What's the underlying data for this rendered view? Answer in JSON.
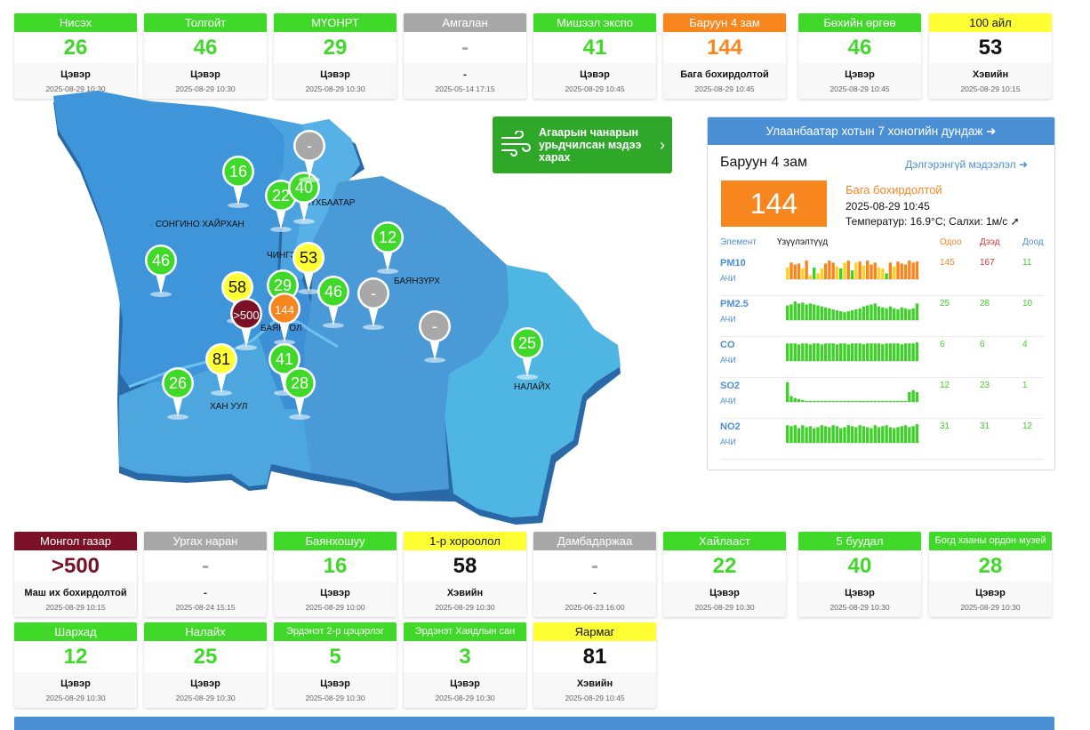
{
  "colors": {
    "green": "#40d92a",
    "orange": "#f7861e",
    "gray": "#a8a8a8",
    "yellow": "#ffff33",
    "maroon": "#7a1126",
    "blue": "#4a8fd4"
  },
  "top_cards": [
    {
      "name": "Нисэх",
      "value": "26",
      "status": "Цэвэр",
      "time": "2025-08-29 10:30",
      "level": "green"
    },
    {
      "name": "Толгойт",
      "value": "46",
      "status": "Цэвэр",
      "time": "2025-08-29 10:30",
      "level": "green"
    },
    {
      "name": "МҮОНРТ",
      "value": "29",
      "status": "Цэвэр",
      "time": "2025-08-29 10:30",
      "level": "green"
    },
    {
      "name": "Амгалан",
      "value": "-",
      "status": "-",
      "time": "2025-05-14 17:15",
      "level": "gray"
    },
    {
      "name": "Мишээл экспо",
      "value": "41",
      "status": "Цэвэр",
      "time": "2025-08-29 10:45",
      "level": "green"
    },
    {
      "name": "Баруун 4 зам",
      "value": "144",
      "status": "Бага бохирдолтой",
      "time": "2025-08-29 10:45",
      "level": "orange"
    },
    {
      "name": "Бөхийн өргөө",
      "value": "46",
      "status": "Цэвэр",
      "time": "2025-08-29 10:45",
      "level": "green"
    },
    {
      "name": "100 айл",
      "value": "53",
      "status": "Хэвийн",
      "time": "2025-08-29 10:15",
      "level": "yellow"
    }
  ],
  "bottom_cards_row1": [
    {
      "name": "Монгол газар",
      "value": ">500",
      "status": "Маш их бохирдолтой",
      "time": "2025-08-29 10:15",
      "level": "maroon"
    },
    {
      "name": "Ургах наран",
      "value": "-",
      "status": "-",
      "time": "2025-08-24 15:15",
      "level": "gray"
    },
    {
      "name": "Баянхошуу",
      "value": "16",
      "status": "Цэвэр",
      "time": "2025-08-29 10:00",
      "level": "green"
    },
    {
      "name": "1-р хороолол",
      "value": "58",
      "status": "Хэвийн",
      "time": "2025-08-29 10:30",
      "level": "yellow"
    },
    {
      "name": "Дамбадаржаа",
      "value": "-",
      "status": "-",
      "time": "2025-06-23 16:00",
      "level": "gray"
    },
    {
      "name": "Хайлааст",
      "value": "22",
      "status": "Цэвэр",
      "time": "2025-08-29 10:30",
      "level": "green"
    },
    {
      "name": "5 буудал",
      "value": "40",
      "status": "Цэвэр",
      "time": "2025-08-29 10:30",
      "level": "green"
    },
    {
      "name": "Богд хааны ордон музей",
      "value": "28",
      "status": "Цэвэр",
      "time": "2025-08-29 10:30",
      "level": "green"
    }
  ],
  "bottom_cards_row2": [
    {
      "name": "Шархад",
      "value": "12",
      "status": "Цэвэр",
      "time": "2025-08-29 10:30",
      "level": "green"
    },
    {
      "name": "Налайх",
      "value": "25",
      "status": "Цэвэр",
      "time": "2025-08-29 10:30",
      "level": "green"
    },
    {
      "name": "Эрдэнэт 2-р цэцэрлэг",
      "value": "5",
      "status": "Цэвэр",
      "time": "2025-08-29 10:30",
      "level": "green"
    },
    {
      "name": "Эрдэнэт Хаядлын сан",
      "value": "3",
      "status": "Цэвэр",
      "time": "2025-08-29 10:30",
      "level": "green"
    },
    {
      "name": "Яармаг",
      "value": "81",
      "status": "Хэвийн",
      "time": "2025-08-29 10:45",
      "level": "yellow"
    }
  ],
  "map": {
    "districts": [
      "СОНГИНО ХАЙРХАН",
      "СҮХБААТАР",
      "ЧИНГЭЛТЭЙ",
      "БАЯНЗҮРХ",
      "БАЯНГОЛ",
      "ХАН УУЛ",
      "НАЛАЙХ"
    ],
    "markers": [
      "16",
      "22",
      "40",
      "-",
      "12",
      "46",
      "53",
      "58",
      "29",
      "46",
      "-",
      ">500",
      "144",
      "-",
      "81",
      "41",
      "26",
      "28",
      "25"
    ]
  },
  "forecast": {
    "label": "Агаарын чанарын урьдчилсан мэдээ харах",
    "icon": "wind-icon"
  },
  "panel": {
    "header": "Улаанбаатар хотын 7 хоногийн дундаж",
    "station": "Баруун 4 зам",
    "detail_link": "Дэлгэрэнгүй мэдээлэл",
    "aqi": "144",
    "level_text": "Бага бохирдолтой",
    "time": "2025-08-29 10:45",
    "weather": "Температур: 16.9°C; Салхи: 1м/с",
    "wind_direction_icon": "wind-direction-arrow-icon",
    "table_headers": {
      "element": "Элемент",
      "readings": "Үзүүлэлтүүд",
      "now": "Одоо",
      "max": "Дээд",
      "min": "Доод"
    },
    "rows": [
      {
        "element": "PM10",
        "sub": "АЧИ",
        "now": "145",
        "max": "167",
        "min": "11",
        "bars": [
          0.6,
          0.85,
          0.75,
          0.8,
          0.55,
          0.95,
          0.2,
          0.6,
          0.3,
          0.55,
          0.8,
          0.95,
          0.85,
          0.65,
          0.55,
          0.85,
          0.95,
          0.45,
          0.85,
          0.9,
          0.7,
          0.95,
          0.75,
          0.85,
          0.6,
          0.55,
          0.3,
          0.85,
          0.65,
          0.9,
          0.8,
          0.75,
          0.95,
          0.85,
          0.9
        ],
        "bar_colors": [
          "y",
          "o",
          "o",
          "o",
          "y",
          "o",
          "y",
          "g",
          "y",
          "y",
          "o",
          "o",
          "o",
          "y",
          "g",
          "y",
          "o",
          "g",
          "y",
          "o",
          "y",
          "o",
          "o",
          "o",
          "y",
          "y",
          "g",
          "o",
          "y",
          "o",
          "o",
          "o",
          "o",
          "o",
          "o"
        ]
      },
      {
        "element": "PM2.5",
        "sub": "АЧИ",
        "now": "25",
        "max": "28",
        "min": "10",
        "bars": [
          0.75,
          0.8,
          0.95,
          0.85,
          0.9,
          0.8,
          0.85,
          0.8,
          0.75,
          0.7,
          0.65,
          0.6,
          0.55,
          0.5,
          0.45,
          0.4,
          0.45,
          0.5,
          0.55,
          0.6,
          0.7,
          0.75,
          0.8,
          0.85,
          0.7,
          0.65,
          0.6,
          0.7,
          0.6,
          0.55,
          0.65,
          0.6,
          0.55,
          0.6,
          0.85
        ]
      },
      {
        "element": "CO",
        "sub": "АЧИ",
        "now": "6",
        "max": "6",
        "min": "4",
        "bars": [
          0.9,
          0.9,
          0.9,
          0.85,
          0.9,
          0.9,
          0.85,
          0.9,
          0.9,
          0.85,
          0.9,
          0.9,
          0.9,
          0.85,
          0.9,
          0.9,
          0.85,
          0.9,
          0.9,
          0.9,
          0.85,
          0.9,
          0.9,
          0.9,
          0.9,
          0.85,
          0.9,
          0.9,
          0.9,
          0.9,
          0.85,
          0.9,
          0.9,
          0.9,
          0.95
        ]
      },
      {
        "element": "SO2",
        "sub": "АЧИ",
        "now": "12",
        "max": "23",
        "min": "1",
        "bars": [
          1.0,
          0.3,
          0.2,
          0.15,
          0.1,
          0.05,
          0.05,
          0.05,
          0.05,
          0.05,
          0.05,
          0.05,
          0.05,
          0.05,
          0.05,
          0.05,
          0.05,
          0.05,
          0.05,
          0.05,
          0.05,
          0.05,
          0.05,
          0.05,
          0.05,
          0.05,
          0.05,
          0.05,
          0.05,
          0.05,
          0.05,
          0.05,
          0.5,
          0.6,
          0.5
        ]
      },
      {
        "element": "NO2",
        "sub": "АЧИ",
        "now": "31",
        "max": "31",
        "min": "12",
        "bars": [
          0.9,
          0.85,
          0.9,
          0.75,
          0.9,
          0.8,
          0.85,
          0.75,
          0.8,
          0.9,
          0.85,
          0.8,
          0.9,
          0.85,
          0.75,
          0.8,
          0.9,
          0.85,
          0.8,
          0.9,
          0.85,
          0.8,
          0.75,
          0.9,
          0.8,
          0.85,
          0.9,
          0.8,
          0.75,
          0.8,
          0.85,
          0.9,
          0.8,
          0.85,
          0.95
        ]
      }
    ]
  }
}
